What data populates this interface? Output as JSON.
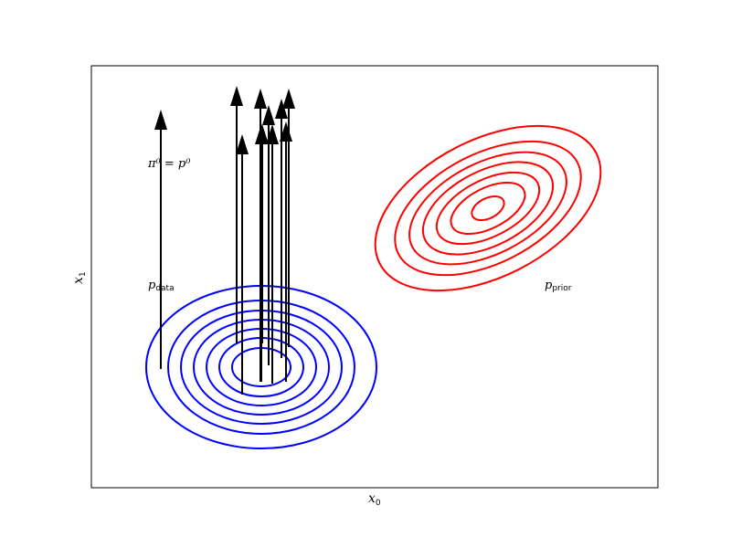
{
  "chart_data": {
    "type": "contour",
    "xlabel_main": "x",
    "xlabel_sub": "0",
    "ylabel_main": "x",
    "ylabel_sub": "1",
    "grid": false,
    "ticks": false,
    "annotations": {
      "pi_p": "π⁰ = p⁰",
      "data_main": "p",
      "data_sub": "data",
      "prior_main": "p",
      "prior_sub": "prior"
    },
    "colors": {
      "data": "#0000ff",
      "prior": "#ff0000",
      "arrows": "#000000"
    },
    "data_dist": {
      "name": "p_data",
      "contour_levels": 7,
      "shape": "axis-aligned ellipses, wider than tall"
    },
    "prior_dist": {
      "name": "p_prior",
      "contour_levels": 7,
      "shape": "tilted ellipses, positive correlation"
    },
    "arrows_count": 11,
    "arrow_direction": "upward"
  }
}
